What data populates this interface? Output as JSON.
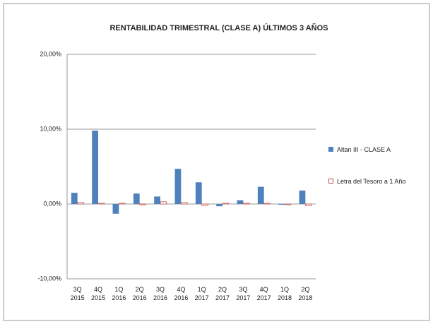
{
  "chart_data": {
    "type": "bar",
    "title": "RENTABILIDAD TRIMESTRAL (CLASE A) ÚLTIMOS 3 AÑOS",
    "categories": [
      "3Q 2015",
      "4Q 2015",
      "1Q 2016",
      "2Q 2016",
      "3Q 2016",
      "4Q 2016",
      "1Q 2017",
      "2Q 2017",
      "3Q 2017",
      "4Q 2017",
      "1Q 2018",
      "2Q 2018"
    ],
    "series": [
      {
        "name": "Altan III - CLASE A",
        "color": "#4f81bd",
        "values": [
          1.5,
          9.8,
          -1.3,
          1.4,
          1.0,
          4.7,
          2.9,
          -0.3,
          0.5,
          2.3,
          -0.1,
          1.8
        ]
      },
      {
        "name": "Letra del Tesoro a 1 Año",
        "color": "#c0504d",
        "values": [
          0.2,
          0.1,
          0.1,
          -0.1,
          0.3,
          0.2,
          -0.2,
          0.1,
          0.1,
          0.1,
          -0.1,
          -0.2
        ]
      }
    ],
    "ylim": [
      -10,
      20
    ],
    "yticks": [
      {
        "value": -10,
        "label": "-10,00%"
      },
      {
        "value": 0,
        "label": "0,00%"
      },
      {
        "value": 10,
        "label": "10,00%"
      },
      {
        "value": 20,
        "label": "20,00%"
      }
    ],
    "grid": true
  }
}
